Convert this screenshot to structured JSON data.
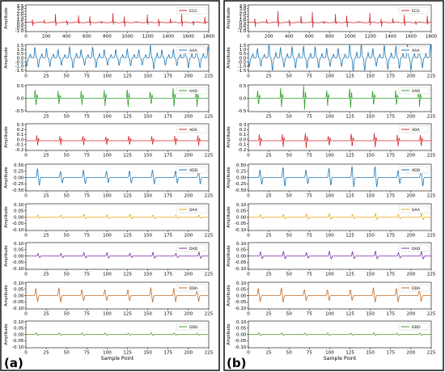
{
  "panels": [
    {
      "tag": "(a)"
    },
    {
      "tag": "(b)"
    }
  ],
  "chart_data": [
    {
      "type": "line",
      "panel": "(a)",
      "legend": "ECG",
      "color": "#d62728",
      "ylabel": "Amplitude",
      "xlabel": "",
      "xlim": [
        0,
        1800
      ],
      "ylim": [
        -1.6,
        3.5
      ],
      "xticks": [
        0,
        200,
        400,
        600,
        800,
        1000,
        1200,
        1400,
        1600,
        1800
      ],
      "yticks": [
        "3.5",
        "3.0",
        "2.5",
        "2.0",
        "1.5",
        "1.0",
        "0.5",
        "0.0",
        "-0.5",
        "-1.0"
      ],
      "pattern": {
        "kind": "ecg",
        "period": 113,
        "offset": 60,
        "amp": 1.7,
        "base": 0.5
      }
    },
    {
      "type": "line",
      "panel": "(a)",
      "legend": "AAA",
      "color": "#1f77b4",
      "ylabel": "Amplitude",
      "xlabel": "",
      "xlim": [
        0,
        225
      ],
      "ylim": [
        -1.6,
        1.6
      ],
      "xticks": [
        0,
        25,
        50,
        75,
        100,
        125,
        150,
        175,
        200,
        225
      ],
      "yticks": [
        "1.5",
        "1.0",
        "0.5",
        "0.0",
        "-0.5",
        "-1.0",
        "-1.5"
      ],
      "pattern": {
        "kind": "wave",
        "period": 14.2,
        "offset": 9,
        "amp": 1.3,
        "base": 0.0
      }
    },
    {
      "type": "line",
      "panel": "(a)",
      "legend": "AAD",
      "color": "#2ca02c",
      "ylabel": "",
      "xlabel": "",
      "xlim": [
        0,
        225
      ],
      "ylim": [
        -0.8,
        0.8
      ],
      "xticks": [
        25,
        50,
        75,
        100,
        125,
        150,
        175,
        200,
        225
      ],
      "yticks": [
        "0.5",
        "0.0",
        "-0.5"
      ],
      "pattern": {
        "kind": "burst",
        "period": 28.3,
        "offset": 10,
        "amp": 0.55,
        "base": 0.0
      }
    },
    {
      "type": "line",
      "panel": "(a)",
      "legend": "ADA",
      "color": "#d62728",
      "ylabel": "Amplitude",
      "xlabel": "",
      "xlim": [
        0,
        225
      ],
      "ylim": [
        -0.25,
        0.3
      ],
      "xticks": [
        0,
        25,
        50,
        75,
        100,
        125,
        150,
        175,
        200,
        225
      ],
      "yticks": [
        "0.3",
        "0.2",
        "0.1",
        "0.0",
        "-0.1",
        "-0.2"
      ],
      "pattern": {
        "kind": "burst",
        "period": 28.3,
        "offset": 12,
        "amp": 0.12,
        "base": -0.05
      }
    },
    {
      "type": "line",
      "panel": "(a)",
      "legend": "ADD",
      "color": "#1f77b4",
      "ylabel": "Amplitude",
      "xlabel": "",
      "xlim": [
        0,
        225
      ],
      "ylim": [
        -0.5,
        0.5
      ],
      "xticks": [
        0,
        25,
        50,
        75,
        100,
        125,
        150,
        175,
        200,
        225
      ],
      "yticks": [
        "0.50",
        "0.25",
        "0.00",
        "-0.25",
        "-0.50"
      ],
      "pattern": {
        "kind": "bip",
        "period": 28.3,
        "offset": 12,
        "amp": 0.3,
        "base": 0.0
      }
    },
    {
      "type": "line",
      "panel": "(a)",
      "legend": "DAA",
      "color": "#e6a817",
      "ylabel": "Amplitude",
      "xlabel": "",
      "xlim": [
        0,
        225
      ],
      "ylim": [
        -0.1,
        0.1
      ],
      "xticks": [
        0,
        25,
        50,
        75,
        100,
        125,
        150,
        175,
        200,
        225
      ],
      "yticks": [
        "0.10",
        "0.05",
        "0.00",
        "-0.05",
        "-0.10"
      ],
      "pattern": {
        "kind": "spike",
        "period": 28.3,
        "offset": 12,
        "amp": 0.02,
        "base": 0.0
      }
    },
    {
      "type": "line",
      "panel": "(a)",
      "legend": "DAD",
      "color": "#7b2fa8",
      "ylabel": "Amplitude",
      "xlabel": "",
      "xlim": [
        0,
        225
      ],
      "ylim": [
        -0.1,
        0.1
      ],
      "xticks": [
        0,
        25,
        50,
        75,
        100,
        125,
        150,
        175,
        200,
        225
      ],
      "yticks": [
        "0.10",
        "0.05",
        "0.00",
        "-0.05",
        "-0.10"
      ],
      "pattern": {
        "kind": "spike",
        "period": 28.3,
        "offset": 12,
        "amp": 0.025,
        "base": 0.0
      }
    },
    {
      "type": "line",
      "panel": "(a)",
      "legend": "DDA",
      "color": "#c06b27",
      "ylabel": "Amplitude",
      "xlabel": "",
      "xlim": [
        0,
        225
      ],
      "ylim": [
        -0.1,
        0.1
      ],
      "xticks": [
        0,
        25,
        50,
        75,
        100,
        125,
        150,
        175,
        200,
        225
      ],
      "yticks": [
        "0.10",
        "0.05",
        "0.00",
        "-0.05",
        "-0.10"
      ],
      "pattern": {
        "kind": "bip",
        "period": 28.3,
        "offset": 10,
        "amp": 0.05,
        "base": 0.0
      }
    },
    {
      "type": "line",
      "panel": "(a)",
      "legend": "DDD",
      "color": "#4a9a2c",
      "ylabel": "Amplitude",
      "xlabel": "Sample Point",
      "xlim": [
        0,
        225
      ],
      "ylim": [
        -0.1,
        0.1
      ],
      "xticks": [
        0,
        25,
        50,
        75,
        100,
        125,
        150,
        175,
        200,
        225
      ],
      "yticks": [
        "0.10",
        "0.05",
        "0.00",
        "-0.05",
        "-0.10"
      ],
      "pattern": {
        "kind": "spike",
        "period": 28.3,
        "offset": 10,
        "amp": 0.012,
        "base": 0.0
      }
    },
    {
      "type": "line",
      "panel": "(b)",
      "legend": "ECG",
      "color": "#d62728",
      "ylabel": "Amplitude",
      "xlabel": "",
      "xlim": [
        0,
        1800
      ],
      "ylim": [
        -1.6,
        3.5
      ],
      "xticks": [
        0,
        200,
        400,
        600,
        800,
        1000,
        1200,
        1400,
        1600,
        1800
      ],
      "yticks": [
        "3.5",
        "3.0",
        "2.5",
        "2.0",
        "1.5",
        "1.0",
        "0.5",
        "0.0",
        "-0.5",
        "-1.0"
      ],
      "pattern": {
        "kind": "ecg",
        "period": 113,
        "offset": 60,
        "amp": 1.9,
        "base": 0.5
      }
    },
    {
      "type": "line",
      "panel": "(b)",
      "legend": "AAA",
      "color": "#1f77b4",
      "ylabel": "Amplitude",
      "xlabel": "",
      "xlim": [
        0,
        225
      ],
      "ylim": [
        -1.6,
        1.6
      ],
      "xticks": [
        0,
        25,
        50,
        75,
        100,
        125,
        150,
        175,
        200,
        225
      ],
      "yticks": [
        "1.5",
        "1.0",
        "0.5",
        "0.0",
        "-0.5",
        "-1.0",
        "-1.5"
      ],
      "pattern": {
        "kind": "wave",
        "period": 14.2,
        "offset": 9,
        "amp": 1.45,
        "base": 0.0
      }
    },
    {
      "type": "line",
      "panel": "(b)",
      "legend": "AAD",
      "color": "#2ca02c",
      "ylabel": "",
      "xlabel": "",
      "xlim": [
        0,
        225
      ],
      "ylim": [
        -0.8,
        0.8
      ],
      "xticks": [
        25,
        50,
        75,
        100,
        125,
        150,
        175,
        200,
        225
      ],
      "yticks": [
        "0.5",
        "0.0",
        "-0.5"
      ],
      "pattern": {
        "kind": "burst",
        "period": 28.3,
        "offset": 10,
        "amp": 0.6,
        "base": 0.0
      }
    },
    {
      "type": "line",
      "panel": "(b)",
      "legend": "ADA",
      "color": "#d62728",
      "ylabel": "Amplitude",
      "xlabel": "",
      "xlim": [
        0,
        225
      ],
      "ylim": [
        -0.25,
        0.3
      ],
      "xticks": [
        0,
        25,
        50,
        75,
        100,
        125,
        150,
        175,
        200,
        225
      ],
      "yticks": [
        "0.3",
        "0.2",
        "0.1",
        "0.0",
        "-0.1",
        "-0.2"
      ],
      "pattern": {
        "kind": "burst",
        "period": 28.3,
        "offset": 12,
        "amp": 0.15,
        "base": -0.05
      }
    },
    {
      "type": "line",
      "panel": "(b)",
      "legend": "ADD",
      "color": "#1f77b4",
      "ylabel": "Amplitude",
      "xlabel": "",
      "xlim": [
        0,
        225
      ],
      "ylim": [
        -0.5,
        0.5
      ],
      "xticks": [
        0,
        25,
        50,
        75,
        100,
        125,
        150,
        175,
        200,
        225
      ],
      "yticks": [
        "0.50",
        "0.25",
        "0.00",
        "-0.25",
        "-0.50"
      ],
      "pattern": {
        "kind": "bip",
        "period": 28.3,
        "offset": 12,
        "amp": 0.34,
        "base": 0.0
      }
    },
    {
      "type": "line",
      "panel": "(b)",
      "legend": "DAA",
      "color": "#e6a817",
      "ylabel": "Amplitude",
      "xlabel": "",
      "xlim": [
        0,
        225
      ],
      "ylim": [
        -0.1,
        0.1
      ],
      "xticks": [
        0,
        25,
        50,
        75,
        100,
        125,
        150,
        175,
        200,
        225
      ],
      "yticks": [
        "0.10",
        "0.05",
        "0.00",
        "-0.05",
        "-0.10"
      ],
      "pattern": {
        "kind": "spike",
        "period": 28.3,
        "offset": 12,
        "amp": 0.025,
        "base": 0.0
      }
    },
    {
      "type": "line",
      "panel": "(b)",
      "legend": "DAD",
      "color": "#7b2fa8",
      "ylabel": "Amplitude",
      "xlabel": "",
      "xlim": [
        0,
        225
      ],
      "ylim": [
        -0.1,
        0.1
      ],
      "xticks": [
        0,
        25,
        50,
        75,
        100,
        125,
        150,
        175,
        200,
        225
      ],
      "yticks": [
        "0.10",
        "0.05",
        "0.00",
        "-0.05",
        "-0.10"
      ],
      "pattern": {
        "kind": "spike",
        "period": 28.3,
        "offset": 12,
        "amp": 0.035,
        "base": 0.0
      }
    },
    {
      "type": "line",
      "panel": "(b)",
      "legend": "DDA",
      "color": "#c06b27",
      "ylabel": "Amplitude",
      "xlabel": "",
      "xlim": [
        0,
        225
      ],
      "ylim": [
        -0.1,
        0.1
      ],
      "xticks": [
        0,
        25,
        50,
        75,
        100,
        125,
        150,
        175,
        200,
        225
      ],
      "yticks": [
        "0.10",
        "0.05",
        "0.00",
        "-0.05",
        "-0.10"
      ],
      "pattern": {
        "kind": "bip",
        "period": 28.3,
        "offset": 10,
        "amp": 0.05,
        "base": 0.0
      }
    },
    {
      "type": "line",
      "panel": "(b)",
      "legend": "DDD",
      "color": "#4a9a2c",
      "ylabel": "Amplitude",
      "xlabel": "Sample Point",
      "xlim": [
        0,
        225
      ],
      "ylim": [
        -0.1,
        0.1
      ],
      "xticks": [
        0,
        25,
        50,
        75,
        100,
        125,
        150,
        175,
        200,
        225
      ],
      "yticks": [
        "0.10",
        "0.05",
        "0.00",
        "-0.05",
        "-0.10"
      ],
      "pattern": {
        "kind": "spike",
        "period": 28.3,
        "offset": 10,
        "amp": 0.012,
        "base": 0.0
      }
    }
  ]
}
